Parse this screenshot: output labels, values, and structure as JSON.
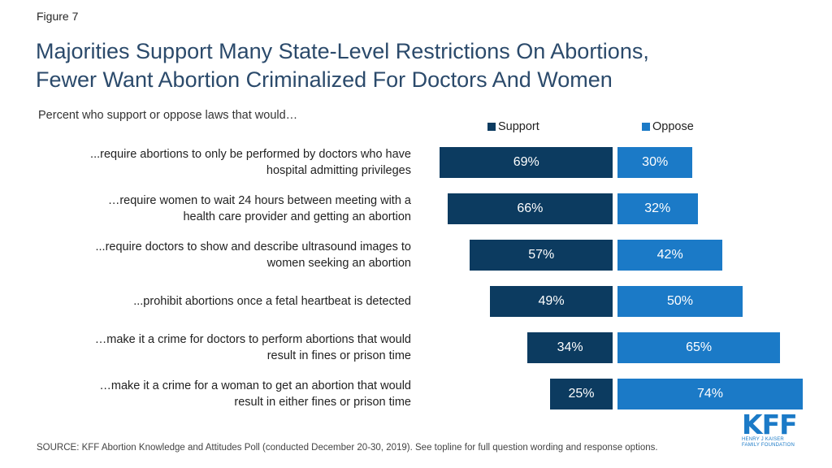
{
  "figure_label": "Figure 7",
  "title_lines": [
    "Majorities Support Many State-Level Restrictions On Abortions,",
    "Fewer Want Abortion Criminalized For Doctors And Women"
  ],
  "subtitle": "Percent who support or oppose laws that would…",
  "source": "SOURCE: KFF Abortion Knowledge and Attitudes Poll (conducted December 20-30, 2019). See topline for full question wording and response options.",
  "logo": {
    "main": "KFF",
    "sub_line1": "HENRY J KAISER",
    "sub_line2": "FAMILY FOUNDATION"
  },
  "colors": {
    "support": "#0c3b60",
    "oppose": "#1b7ac7",
    "title": "#2b4a6b"
  },
  "chart_data": {
    "type": "bar",
    "orientation": "horizontal-diverging",
    "legend_position": "top",
    "grid": false,
    "series": [
      {
        "name": "Support",
        "values": [
          69,
          66,
          57,
          49,
          34,
          25
        ]
      },
      {
        "name": "Oppose",
        "values": [
          30,
          32,
          42,
          50,
          65,
          74
        ]
      }
    ],
    "categories": [
      [
        "...require abortions to only be performed by doctors who have",
        "hospital admitting privileges"
      ],
      [
        "…require women to wait 24 hours between meeting with a",
        "health care provider and getting an abortion"
      ],
      [
        "...require doctors to show and describe ultrasound images to",
        "women seeking an abortion"
      ],
      [
        "...prohibit abortions once a fetal heartbeat is detected"
      ],
      [
        "…make it a crime for doctors to perform abortions that would",
        "result in fines or prison time"
      ],
      [
        "…make it a crime for a woman to get an abortion that would",
        "result in either fines or prison time"
      ]
    ],
    "value_labels": {
      "support": [
        "69%",
        "66%",
        "57%",
        "49%",
        "34%",
        "25%"
      ],
      "oppose": [
        "30%",
        "32%",
        "42%",
        "50%",
        "65%",
        "74%"
      ]
    }
  }
}
